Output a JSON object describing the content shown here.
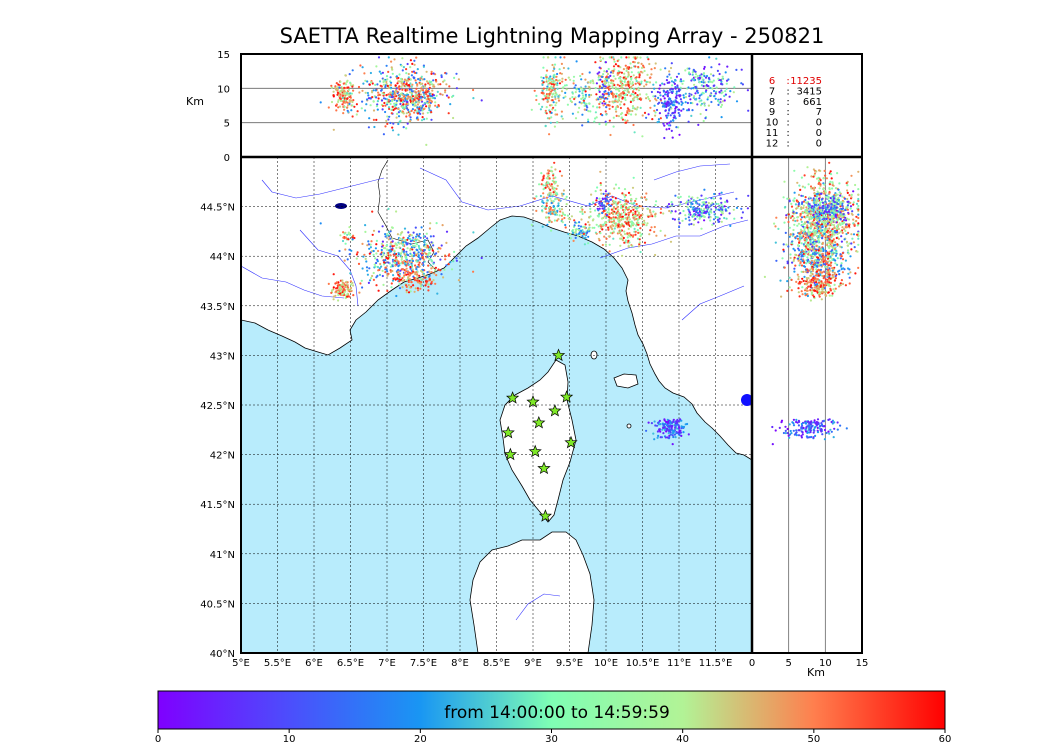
{
  "title": "SAETTA Realtime Lightning Mapping Array - 250821",
  "colorbar": {
    "label": "from 14:00:00 to 14:59:59",
    "ticks": [
      "0",
      "10",
      "20",
      "30",
      "40",
      "50",
      "60"
    ],
    "min": 0,
    "max": 60
  },
  "alt_panel": {
    "ylabel": "Km",
    "yticks": [
      "15",
      "10",
      "5",
      "0"
    ],
    "ylim": [
      0,
      15
    ],
    "ref_lines_km": [
      5,
      10
    ]
  },
  "side_panel": {
    "xlabel": "Km",
    "xticks": [
      "0",
      "5",
      "10",
      "15"
    ],
    "xlim": [
      0,
      15
    ],
    "ref_lines_km": [
      5,
      10
    ]
  },
  "map": {
    "lon_ticks": [
      "5°E",
      "5.5°E",
      "6°E",
      "6.5°E",
      "7°E",
      "7.5°E",
      "8°E",
      "8.5°E",
      "9°E",
      "9.5°E",
      "10°E",
      "10.5°E",
      "11°E",
      "11.5°E"
    ],
    "lat_ticks": [
      "44.5°N",
      "44°N",
      "43.5°N",
      "43°N",
      "42.5°N",
      "42°N",
      "41.5°N",
      "41°N",
      "40.5°N",
      "40°N"
    ],
    "lon_range": [
      5,
      12
    ],
    "lat_range": [
      40,
      45
    ],
    "sea_color": "#b8ecfc",
    "station_color": "#7ee827",
    "stations": [
      {
        "lon": 9.35,
        "lat": 43.0
      },
      {
        "lon": 8.72,
        "lat": 42.57
      },
      {
        "lon": 9.0,
        "lat": 42.53
      },
      {
        "lon": 9.46,
        "lat": 42.58
      },
      {
        "lon": 9.3,
        "lat": 42.44
      },
      {
        "lon": 9.08,
        "lat": 42.32
      },
      {
        "lon": 8.66,
        "lat": 42.22
      },
      {
        "lon": 9.52,
        "lat": 42.12
      },
      {
        "lon": 8.69,
        "lat": 42.0
      },
      {
        "lon": 9.03,
        "lat": 42.03
      },
      {
        "lon": 9.15,
        "lat": 41.86
      },
      {
        "lon": 9.17,
        "lat": 41.38
      }
    ],
    "clusters": [
      {
        "lon": 6.4,
        "lat": 43.67,
        "rlon": 0.08,
        "rlat": 0.05,
        "n": 110,
        "cmin": 0.6,
        "cmax": 1.0,
        "alt": 9,
        "altsd": 1.2
      },
      {
        "lon": 6.45,
        "lat": 44.2,
        "rlon": 0.06,
        "rlat": 0.04,
        "n": 25,
        "cmin": 0.4,
        "cmax": 1.0,
        "alt": 9,
        "altsd": 1.2
      },
      {
        "lon": 7.25,
        "lat": 44.0,
        "rlon": 0.3,
        "rlat": 0.15,
        "n": 520,
        "cmin": 0.1,
        "cmax": 1.0,
        "alt": 9,
        "altsd": 2.0
      },
      {
        "lon": 7.4,
        "lat": 43.8,
        "rlon": 0.16,
        "rlat": 0.07,
        "n": 90,
        "cmin": 0.7,
        "cmax": 1.0,
        "alt": 9,
        "altsd": 1.5
      },
      {
        "lon": 9.28,
        "lat": 44.5,
        "rlon": 0.1,
        "rlat": 0.1,
        "n": 130,
        "cmin": 0.3,
        "cmax": 0.9,
        "alt": 10,
        "altsd": 2.5
      },
      {
        "lon": 9.25,
        "lat": 44.75,
        "rlon": 0.07,
        "rlat": 0.08,
        "n": 55,
        "cmin": 0.5,
        "cmax": 1.0,
        "alt": 10,
        "altsd": 2.0
      },
      {
        "lon": 9.67,
        "lat": 44.24,
        "rlon": 0.08,
        "rlat": 0.04,
        "n": 60,
        "cmin": 0.2,
        "cmax": 0.7,
        "alt": 9,
        "altsd": 2.0
      },
      {
        "lon": 10.2,
        "lat": 44.38,
        "rlon": 0.24,
        "rlat": 0.13,
        "n": 430,
        "cmin": 0.45,
        "cmax": 1.0,
        "alt": 10,
        "altsd": 2.5
      },
      {
        "lon": 9.98,
        "lat": 44.55,
        "rlon": 0.08,
        "rlat": 0.05,
        "n": 35,
        "cmin": 0.0,
        "cmax": 0.3,
        "alt": 10,
        "altsd": 2.0
      },
      {
        "lon": 11.35,
        "lat": 44.47,
        "rlon": 0.25,
        "rlat": 0.07,
        "n": 210,
        "cmin": 0.0,
        "cmax": 0.7,
        "alt": 10,
        "altsd": 2.0
      },
      {
        "lon": 10.88,
        "lat": 42.26,
        "rlon": 0.1,
        "rlat": 0.05,
        "n": 160,
        "cmin": 0.0,
        "cmax": 0.4,
        "alt": 8,
        "altsd": 2.0
      }
    ]
  },
  "stats": [
    {
      "level": "6",
      "count": "11235",
      "highlight": true
    },
    {
      "level": "7",
      "count": "3415",
      "highlight": false
    },
    {
      "level": "8",
      "count": "661",
      "highlight": false
    },
    {
      "level": "9",
      "count": "7",
      "highlight": false
    },
    {
      "level": "10",
      "count": "0",
      "highlight": false
    },
    {
      "level": "11",
      "count": "0",
      "highlight": false
    },
    {
      "level": "12",
      "count": "0",
      "highlight": false
    }
  ]
}
